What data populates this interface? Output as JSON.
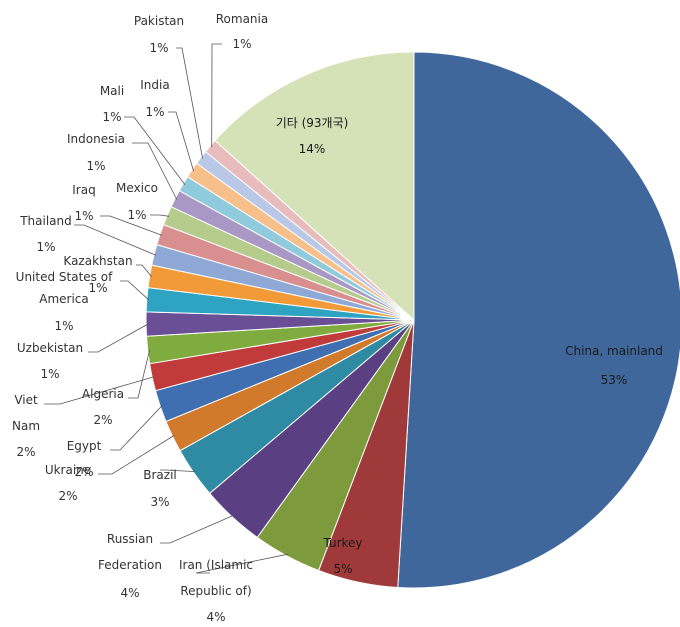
{
  "chart_data": {
    "type": "pie",
    "title": "",
    "start_angle_deg": 0,
    "direction": "clockwise",
    "slices": [
      {
        "name": "China, mainland",
        "label_name": [
          "China, mainland"
        ],
        "pct_text": "53%",
        "value": 52.8,
        "color": "#3f679c"
      },
      {
        "name": "Turkey",
        "label_name": [
          "Turkey"
        ],
        "pct_text": "5%",
        "value": 5.0,
        "color": "#a03a3a"
      },
      {
        "name": "Iran (Islamic Republic of)",
        "label_name": [
          "Iran (Islamic",
          "Republic of)"
        ],
        "pct_text": "4%",
        "value": 4.3,
        "color": "#7d9b3c"
      },
      {
        "name": "Russian Federation",
        "label_name": [
          "Russian",
          "Federation"
        ],
        "pct_text": "4%",
        "value": 4.0,
        "color": "#5a3f83"
      },
      {
        "name": "Brazil",
        "label_name": [
          "Brazil"
        ],
        "pct_text": "3%",
        "value": 3.2,
        "color": "#2f8aa3"
      },
      {
        "name": "Ukraine",
        "label_name": [
          "Ukraine"
        ],
        "pct_text": "2%",
        "value": 2.0,
        "color": "#d17a2c"
      },
      {
        "name": "Egypt",
        "label_name": [
          "Egypt"
        ],
        "pct_text": "2%",
        "value": 2.0,
        "color": "#3f6fb0"
      },
      {
        "name": "Viet Nam",
        "label_name": [
          "Viet",
          "Nam"
        ],
        "pct_text": "2%",
        "value": 1.7,
        "color": "#c23b3b"
      },
      {
        "name": "Algeria",
        "label_name": [
          "Algeria"
        ],
        "pct_text": "2%",
        "value": 1.7,
        "color": "#7fab3f"
      },
      {
        "name": "Uzbekistan",
        "label_name": [
          "Uzbekistan"
        ],
        "pct_text": "1%",
        "value": 1.5,
        "color": "#6a4f96"
      },
      {
        "name": "United States of America",
        "label_name": [
          "United States of",
          "America"
        ],
        "pct_text": "1%",
        "value": 1.5,
        "color": "#2fa4c2"
      },
      {
        "name": "Kazakhstan",
        "label_name": [
          "Kazakhstan"
        ],
        "pct_text": "1%",
        "value": 1.4,
        "color": "#f39a38"
      },
      {
        "name": "Thailand",
        "label_name": [
          "Thailand"
        ],
        "pct_text": "1%",
        "value": 1.3,
        "color": "#8fa9d6"
      },
      {
        "name": "Iraq",
        "label_name": [
          "Iraq"
        ],
        "pct_text": "1%",
        "value": 1.3,
        "color": "#d98f8f"
      },
      {
        "name": "Mexico",
        "label_name": [
          "Mexico"
        ],
        "pct_text": "1%",
        "value": 1.2,
        "color": "#b5cc8d"
      },
      {
        "name": "Indonesia",
        "label_name": [
          "Indonesia"
        ],
        "pct_text": "1%",
        "value": 1.1,
        "color": "#a998c6"
      },
      {
        "name": "Mali",
        "label_name": [
          "Mali"
        ],
        "pct_text": "1%",
        "value": 1.0,
        "color": "#8fcbdc"
      },
      {
        "name": "India",
        "label_name": [
          "India"
        ],
        "pct_text": "1%",
        "value": 1.0,
        "color": "#f7bf8a"
      },
      {
        "name": "Pakistan",
        "label_name": [
          "Pakistan"
        ],
        "pct_text": "1%",
        "value": 0.9,
        "color": "#b8c8e6"
      },
      {
        "name": "Romania",
        "label_name": [
          "Romania"
        ],
        "pct_text": "1%",
        "value": 0.9,
        "color": "#e8bcbc"
      },
      {
        "name": "기타 (93개국)",
        "label_name": [
          "기타 (93개국)"
        ],
        "pct_text": "14%",
        "value": 13.8,
        "color": "#d5e2b8"
      }
    ]
  }
}
